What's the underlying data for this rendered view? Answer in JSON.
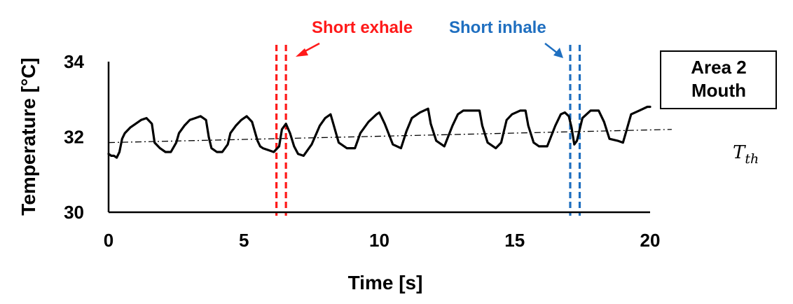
{
  "chart_data": {
    "type": "line",
    "xlabel": "Time [s]",
    "ylabel": "Temperature [°C]",
    "xlim": [
      0,
      20
    ],
    "ylim": [
      30,
      34
    ],
    "x_ticks": [
      "0",
      "5",
      "10",
      "15",
      "20"
    ],
    "y_ticks": [
      "30",
      "32",
      "34"
    ],
    "grid": false,
    "legend_box": {
      "line1": "Area 2",
      "line2": "Mouth"
    },
    "threshold": {
      "label": "T",
      "subscript": "th",
      "x": [
        0,
        20.8
      ],
      "y": [
        31.85,
        32.2
      ]
    },
    "annotations": {
      "short_exhale": {
        "label": "Short exhale",
        "color": "#ff1a1a",
        "x_lines": [
          6.2,
          6.55
        ]
      },
      "short_inhale": {
        "label": "Short inhale",
        "color": "#1f6fc0",
        "x_lines": [
          17.05,
          17.4
        ]
      }
    },
    "series": [
      {
        "color": "#000000",
        "x": [
          0,
          0.1,
          0.2,
          0.3,
          0.4,
          0.5,
          0.6,
          0.8,
          1.0,
          1.2,
          1.4,
          1.6,
          1.7,
          1.9,
          2.1,
          2.3,
          2.5,
          2.6,
          2.8,
          3.0,
          3.2,
          3.4,
          3.6,
          3.7,
          3.8,
          4.0,
          4.2,
          4.4,
          4.5,
          4.7,
          4.9,
          5.1,
          5.3,
          5.5,
          5.6,
          5.7,
          5.9,
          6.1,
          6.3,
          6.4,
          6.55,
          6.7,
          6.85,
          7.0,
          7.2,
          7.5,
          7.8,
          8.0,
          8.2,
          8.3,
          8.5,
          8.8,
          9.1,
          9.3,
          9.6,
          9.9,
          10.0,
          10.2,
          10.5,
          10.8,
          11.0,
          11.2,
          11.5,
          11.8,
          11.9,
          12.1,
          12.4,
          12.7,
          12.9,
          13.1,
          13.4,
          13.7,
          13.8,
          14.0,
          14.3,
          14.5,
          14.7,
          14.9,
          15.2,
          15.4,
          15.5,
          15.7,
          15.9,
          16.2,
          16.5,
          16.7,
          16.85,
          17.0,
          17.1,
          17.2,
          17.3,
          17.5,
          17.8,
          18.1,
          18.3,
          18.5,
          18.8,
          19.0,
          19.1,
          19.3,
          19.6,
          19.9,
          20.0
        ],
        "y": [
          31.55,
          31.5,
          31.5,
          31.45,
          31.6,
          31.95,
          32.1,
          32.25,
          32.35,
          32.45,
          32.5,
          32.35,
          31.85,
          31.7,
          31.6,
          31.6,
          31.85,
          32.1,
          32.3,
          32.45,
          32.5,
          32.55,
          32.45,
          32.0,
          31.7,
          31.6,
          31.6,
          31.8,
          32.1,
          32.3,
          32.45,
          32.55,
          32.4,
          31.9,
          31.75,
          31.7,
          31.65,
          31.6,
          31.75,
          32.2,
          32.35,
          32.1,
          31.75,
          31.55,
          31.5,
          31.8,
          32.3,
          32.5,
          32.6,
          32.35,
          31.85,
          31.7,
          31.7,
          32.1,
          32.4,
          32.6,
          32.65,
          32.35,
          31.8,
          31.7,
          32.15,
          32.5,
          32.65,
          32.75,
          32.35,
          31.9,
          31.75,
          32.3,
          32.6,
          32.7,
          32.7,
          32.7,
          32.3,
          31.85,
          31.7,
          31.85,
          32.45,
          32.6,
          32.7,
          32.7,
          32.3,
          31.85,
          31.75,
          31.75,
          32.3,
          32.6,
          32.65,
          32.55,
          32.25,
          31.8,
          31.9,
          32.5,
          32.7,
          32.7,
          32.4,
          31.95,
          31.9,
          31.85,
          32.1,
          32.6,
          32.7,
          32.8,
          32.8
        ]
      }
    ]
  }
}
